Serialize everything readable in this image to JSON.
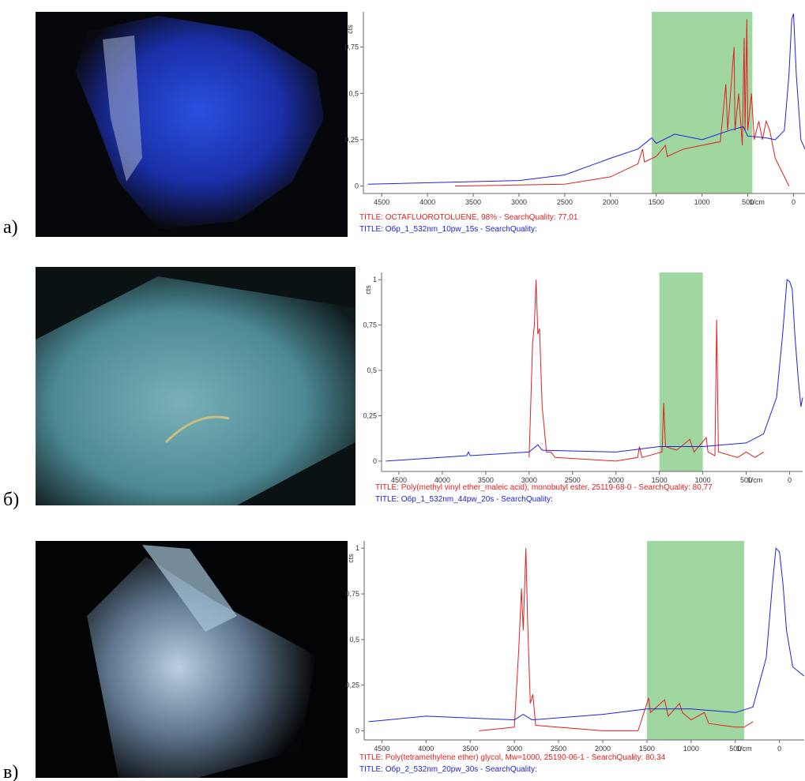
{
  "chart_data": [
    {
      "type": "line",
      "panel_label": "а)",
      "xlabel": "1/cm",
      "ylabel": "cts",
      "xlim": [
        4700,
        -125
      ],
      "ylim": [
        -0.04,
        0.94
      ],
      "xticks": [
        4500,
        4000,
        3500,
        3000,
        2500,
        2000,
        1500,
        1000,
        500,
        0
      ],
      "yticks": [
        0,
        {
          "value": 0.25,
          "label": "0,25"
        },
        {
          "value": 0.5,
          "label": "0,5"
        },
        {
          "value": 0.75,
          "label": "0,75"
        }
      ],
      "highlight_range": [
        1550,
        450
      ],
      "highlight_color": "#8fd08f",
      "series": [
        {
          "name": "TITLE:  OCTAFLUOROTOLUENE, 98% - SearchQuality: 77,01",
          "color": "#e02020",
          "x": [
            3700,
            2500,
            2000,
            1700,
            1650,
            1630,
            1500,
            1400,
            1380,
            1200,
            1000,
            800,
            740,
            720,
            650,
            640,
            600,
            560,
            540,
            530,
            510,
            500,
            460,
            430,
            380,
            340,
            300,
            260,
            200,
            100,
            50
          ],
          "values": [
            0,
            0.01,
            0.05,
            0.12,
            0.2,
            0.13,
            0.16,
            0.22,
            0.16,
            0.2,
            0.22,
            0.24,
            0.55,
            0.3,
            0.75,
            0.3,
            0.5,
            0.22,
            0.8,
            0.3,
            0.9,
            0.3,
            0.5,
            0.25,
            0.35,
            0.25,
            0.35,
            0.3,
            0.15,
            0.05,
            0
          ]
        },
        {
          "name": "TITLE: Обр_1_532nm_10pw_15s - SearchQuality:",
          "color": "#2020e0",
          "x": [
            4650,
            3000,
            2500,
            2000,
            1700,
            1550,
            1500,
            1300,
            1000,
            700,
            550,
            500,
            300,
            200,
            100,
            50,
            20,
            0,
            -30,
            -80,
            -125
          ],
          "values": [
            0.01,
            0.03,
            0.06,
            0.15,
            0.2,
            0.26,
            0.23,
            0.28,
            0.25,
            0.3,
            0.32,
            0.27,
            0.26,
            0.25,
            0.3,
            0.6,
            0.9,
            0.93,
            0.6,
            0.25,
            0.2
          ]
        }
      ]
    },
    {
      "type": "line",
      "panel_label": "б)",
      "xlabel": "1/cm",
      "ylabel": "cts",
      "xlim": [
        4700,
        -150
      ],
      "ylim": [
        -0.057,
        1.04
      ],
      "xticks": [
        4500,
        4000,
        3500,
        3000,
        2500,
        2000,
        1500,
        1000,
        500,
        0
      ],
      "yticks": [
        0,
        {
          "value": 0.25,
          "label": "0,25"
        },
        {
          "value": 0.5,
          "label": "0,5"
        },
        {
          "value": 0.75,
          "label": "0,75"
        },
        1
      ],
      "highlight_range": [
        1500,
        1000
      ],
      "highlight_color": "#8fd08f",
      "series": [
        {
          "name": "TITLE:  Poly(methyl vinyl ether_maleic acid), monobutyl ester, 25119-68-0 - SearchQuality: 80,77",
          "color": "#e02020",
          "x": [
            3000,
            2960,
            2940,
            2920,
            2900,
            2880,
            2850,
            2800,
            2750,
            2700,
            2000,
            1750,
            1730,
            1700,
            1470,
            1450,
            1430,
            1300,
            1150,
            1100,
            960,
            940,
            860,
            840,
            820,
            600,
            500,
            400,
            300
          ],
          "values": [
            0.02,
            0.65,
            0.75,
            1.0,
            0.7,
            0.73,
            0.3,
            0.05,
            0.05,
            0.02,
            0,
            0.02,
            0.08,
            0.02,
            0.05,
            0.32,
            0.08,
            0.06,
            0.12,
            0.05,
            0.13,
            0.05,
            0.03,
            0.78,
            0.05,
            0.02,
            0.05,
            0.02,
            0.05
          ]
        },
        {
          "name": "TITLE: Обр_1_532nm_44pw_20s - SearchQuality:",
          "color": "#2020e0",
          "x": [
            4650,
            3720,
            3700,
            3680,
            3000,
            2900,
            2850,
            2000,
            1500,
            1000,
            500,
            300,
            150,
            80,
            30,
            0,
            -30,
            -60,
            -100,
            -130,
            -150
          ],
          "values": [
            0,
            0.03,
            0.05,
            0.03,
            0.05,
            0.09,
            0.06,
            0.05,
            0.08,
            0.08,
            0.1,
            0.15,
            0.35,
            0.7,
            1.0,
            0.99,
            0.95,
            0.7,
            0.45,
            0.3,
            0.35
          ]
        }
      ]
    },
    {
      "type": "line",
      "panel_label": "в)",
      "xlabel": "1/cm",
      "ylabel": "cts",
      "xlim": [
        4700,
        -280
      ],
      "ylim": [
        -0.05,
        1.04
      ],
      "xticks": [
        4500,
        4000,
        3500,
        3000,
        2500,
        2000,
        1500,
        1000,
        500,
        0
      ],
      "yticks": [
        0,
        {
          "value": 0.25,
          "label": "0,25"
        },
        {
          "value": 0.5,
          "label": "0,5"
        },
        {
          "value": 0.75,
          "label": "0,75"
        },
        1
      ],
      "highlight_range": [
        1500,
        400
      ],
      "highlight_color": "#8fd08f",
      "series": [
        {
          "name": "TITLE:  Poly(tetramethylene ether) glycol, Mw=1000, 25190-06-1 - SearchQuality: 80,34",
          "color": "#e02020",
          "x": [
            3400,
            3000,
            2950,
            2920,
            2900,
            2870,
            2850,
            2820,
            2790,
            2760,
            2000,
            1600,
            1480,
            1460,
            1300,
            1260,
            1130,
            1100,
            1000,
            850,
            800,
            500,
            400,
            300
          ],
          "values": [
            0,
            0.02,
            0.45,
            0.78,
            0.55,
            1.0,
            0.6,
            0.15,
            0.2,
            0.03,
            0,
            0,
            0.18,
            0.1,
            0.17,
            0.08,
            0.15,
            0.1,
            0.06,
            0.1,
            0.04,
            0.02,
            0.02,
            0.05
          ]
        },
        {
          "name": "TITLE: Обр_2_532nm_20pw_30s - SearchQuality:",
          "color": "#2020e0",
          "x": [
            4650,
            4000,
            3000,
            2900,
            2800,
            2000,
            1500,
            1000,
            500,
            300,
            150,
            80,
            40,
            0,
            -40,
            -80,
            -150,
            -280
          ],
          "values": [
            0.05,
            0.08,
            0.06,
            0.09,
            0.06,
            0.09,
            0.12,
            0.12,
            0.1,
            0.13,
            0.4,
            0.8,
            1.0,
            0.98,
            0.8,
            0.55,
            0.35,
            0.3
          ]
        }
      ]
    }
  ]
}
